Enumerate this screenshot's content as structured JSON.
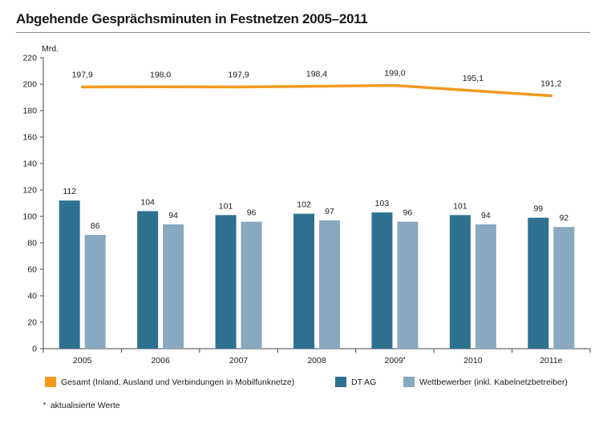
{
  "title": "Abgehende Gesprächsminuten in Festnetzen 2005–2011",
  "colors": {
    "gesamt": "#f39a1f",
    "dtag": "#2e7191",
    "wettbewerber": "#88a9c0",
    "axis": "#444444"
  },
  "chart_data": {
    "type": "bar",
    "ylabel": "Mrd.",
    "ylim": [
      0,
      220
    ],
    "yticks": [
      0,
      20,
      40,
      60,
      80,
      100,
      120,
      140,
      160,
      180,
      200,
      220
    ],
    "categories": [
      "2005",
      "2006",
      "2007",
      "2008",
      "2009",
      "2010",
      "2011e"
    ],
    "category_marks": [
      "",
      "",
      "",
      "",
      "▪",
      "",
      ""
    ],
    "series": [
      {
        "name": "DT AG",
        "kind": "bar",
        "color": "#2e7191",
        "values": [
          112,
          104,
          101,
          102,
          103,
          101,
          99
        ],
        "labels": [
          "112",
          "104",
          "101",
          "102",
          "103",
          "101",
          "99"
        ]
      },
      {
        "name": "Wettbewerber (inkl. Kabelnetzbetreiber)",
        "kind": "bar",
        "color": "#88a9c0",
        "values": [
          86,
          94,
          96,
          97,
          96,
          94,
          92
        ],
        "labels": [
          "86",
          "94",
          "96",
          "97",
          "96",
          "94",
          "92"
        ]
      },
      {
        "name": "Gesamt (Inland, Ausland und Verbindungen in Mobilfunknetze)",
        "kind": "line",
        "color": "#f39a1f",
        "values": [
          197.9,
          198.0,
          197.9,
          198.4,
          199.0,
          195.1,
          191.2
        ],
        "labels": [
          "197,9",
          "198,0",
          "197,9",
          "198,4",
          "199,0",
          "195,1",
          "191,2"
        ]
      }
    ]
  },
  "legend": {
    "gesamt": "Gesamt (Inland, Ausland und Verbindungen in Mobilfunknetze)",
    "dtag": "DT AG",
    "wettbewerber": "Wettbewerber (inkl. Kabelnetzbetreiber)"
  },
  "footnote": {
    "mark": "▪",
    "text": "aktualisierte Werte"
  }
}
